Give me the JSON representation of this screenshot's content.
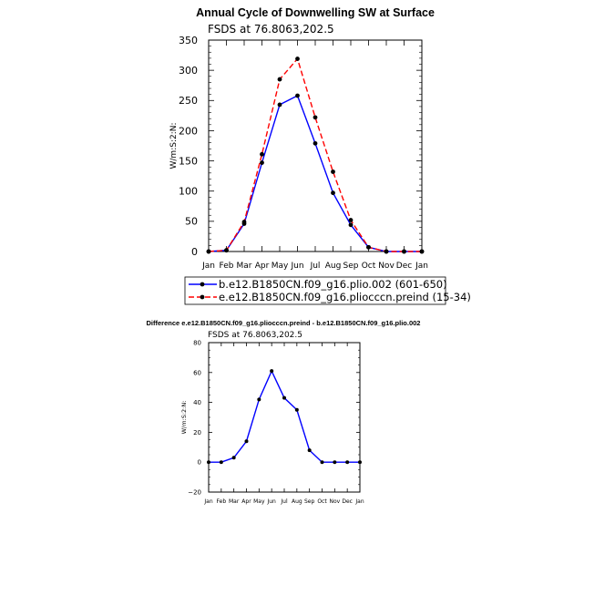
{
  "chart_data": [
    {
      "type": "line",
      "title": "Annual Cycle of Downwelling SW at Surface",
      "subtitle": "FSDS at 76.8063,202.5",
      "ylabel": "W/m:S:2:N:",
      "xlabel": "",
      "categories": [
        "Jan",
        "Feb",
        "Mar",
        "Apr",
        "May",
        "Jun",
        "Jul",
        "Aug",
        "Sep",
        "Oct",
        "Nov",
        "Dec",
        "Jan"
      ],
      "ylim": [
        0,
        350
      ],
      "yticks": [
        "0",
        "50",
        "100",
        "150",
        "200",
        "250",
        "300",
        "350"
      ],
      "grid": false,
      "legend_position": "bottom",
      "series": [
        {
          "name": "b.e12.B1850CN.f09_g16.plio.002 (601-650)",
          "color": "#0000ff",
          "dash": "solid",
          "values": [
            0,
            2,
            46,
            147,
            243,
            258,
            179,
            97,
            44,
            7,
            0,
            0,
            0
          ]
        },
        {
          "name": "e.e12.B1850CN.f09_g16.pliocccn.preind (15-34)",
          "color": "#ff0000",
          "dash": "dashed",
          "values": [
            0,
            2,
            49,
            161,
            285,
            319,
            222,
            132,
            52,
            7,
            0,
            0,
            0
          ]
        }
      ]
    },
    {
      "type": "line",
      "title": "Difference e.e12.B1850CN.f09_g16.pliocccn.preind - b.e12.B1850CN.f09_g16.plio.002",
      "subtitle": "FSDS at 76.8063,202.5",
      "ylabel": "W/m:S:2:N:",
      "xlabel": "",
      "categories": [
        "Jan",
        "Feb",
        "Mar",
        "Apr",
        "May",
        "Jun",
        "Jul",
        "Aug",
        "Sep",
        "Oct",
        "Nov",
        "Dec",
        "Jan"
      ],
      "ylim": [
        -20,
        80
      ],
      "yticks": [
        "−20",
        "0",
        "20",
        "40",
        "60",
        "80"
      ],
      "grid": false,
      "series": [
        {
          "color": "#0000ff",
          "dash": "solid",
          "values": [
            0,
            0,
            3,
            14,
            42,
            61,
            43,
            35,
            8,
            0,
            0,
            0,
            0
          ]
        }
      ]
    }
  ]
}
